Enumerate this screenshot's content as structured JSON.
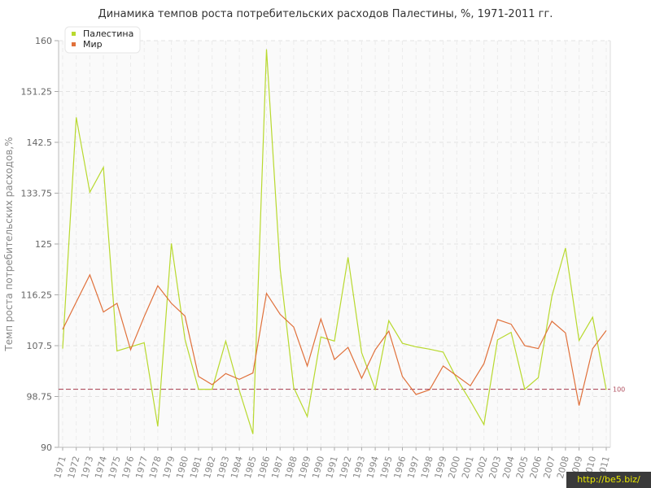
{
  "chart_data": {
    "type": "line",
    "title": "Динамика темпов роста потребительских расходов Палестины, %, 1971-2011 гг.",
    "ylabel": "Темп роста потребительских расходов,%",
    "xlabel": "",
    "ylim": [
      90,
      160
    ],
    "yticks": [
      "90",
      "98.75",
      "107.5",
      "116.25",
      "125",
      "133.75",
      "142.5",
      "151.25",
      "160"
    ],
    "x": [
      "1971",
      "1972",
      "1973",
      "1974",
      "1975",
      "1976",
      "1977",
      "1978",
      "1979",
      "1980",
      "1981",
      "1982",
      "1983",
      "1984",
      "1985",
      "1986",
      "1987",
      "1988",
      "1989",
      "1990",
      "1991",
      "1992",
      "1993",
      "1994",
      "1995",
      "1996",
      "1997",
      "1998",
      "1999",
      "2000",
      "2001",
      "2002",
      "2003",
      "2004",
      "2005",
      "2006",
      "2007",
      "2008",
      "2009",
      "2010",
      "2011"
    ],
    "grid": true,
    "legend_position": "top-left",
    "series": [
      {
        "name": "Палестина",
        "color": "#b8d92e",
        "values": [
          107.0,
          146.8,
          133.9,
          138.2,
          106.6,
          107.3,
          108.0,
          93.6,
          125.1,
          108.6,
          100.0,
          100.0,
          108.3,
          99.8,
          92.3,
          158.5,
          120.8,
          100.3,
          95.3,
          109.0,
          108.3,
          122.7,
          106.3,
          100.0,
          111.8,
          107.9,
          107.3,
          106.9,
          106.4,
          101.8,
          98.0,
          93.9,
          108.5,
          109.8,
          100.0,
          102.0,
          116.0,
          124.3,
          108.4,
          112.4,
          99.9
        ]
      },
      {
        "name": "Мир",
        "color": "#e0703a",
        "values": [
          110.3,
          115.0,
          119.7,
          113.3,
          114.8,
          106.8,
          112.5,
          117.8,
          114.8,
          112.6,
          102.2,
          100.8,
          102.7,
          101.7,
          102.8,
          116.5,
          112.9,
          110.7,
          104.0,
          112.1,
          105.1,
          107.2,
          101.9,
          106.8,
          110.0,
          102.2,
          99.1,
          99.9,
          104.0,
          102.3,
          100.6,
          104.4,
          112.0,
          111.2,
          107.5,
          107.0,
          111.7,
          109.7,
          97.2,
          107.0,
          110.1
        ]
      }
    ],
    "reference_line": {
      "value": 100,
      "label": "100",
      "color": "#b05060"
    }
  },
  "watermark": "http://be5.biz/"
}
